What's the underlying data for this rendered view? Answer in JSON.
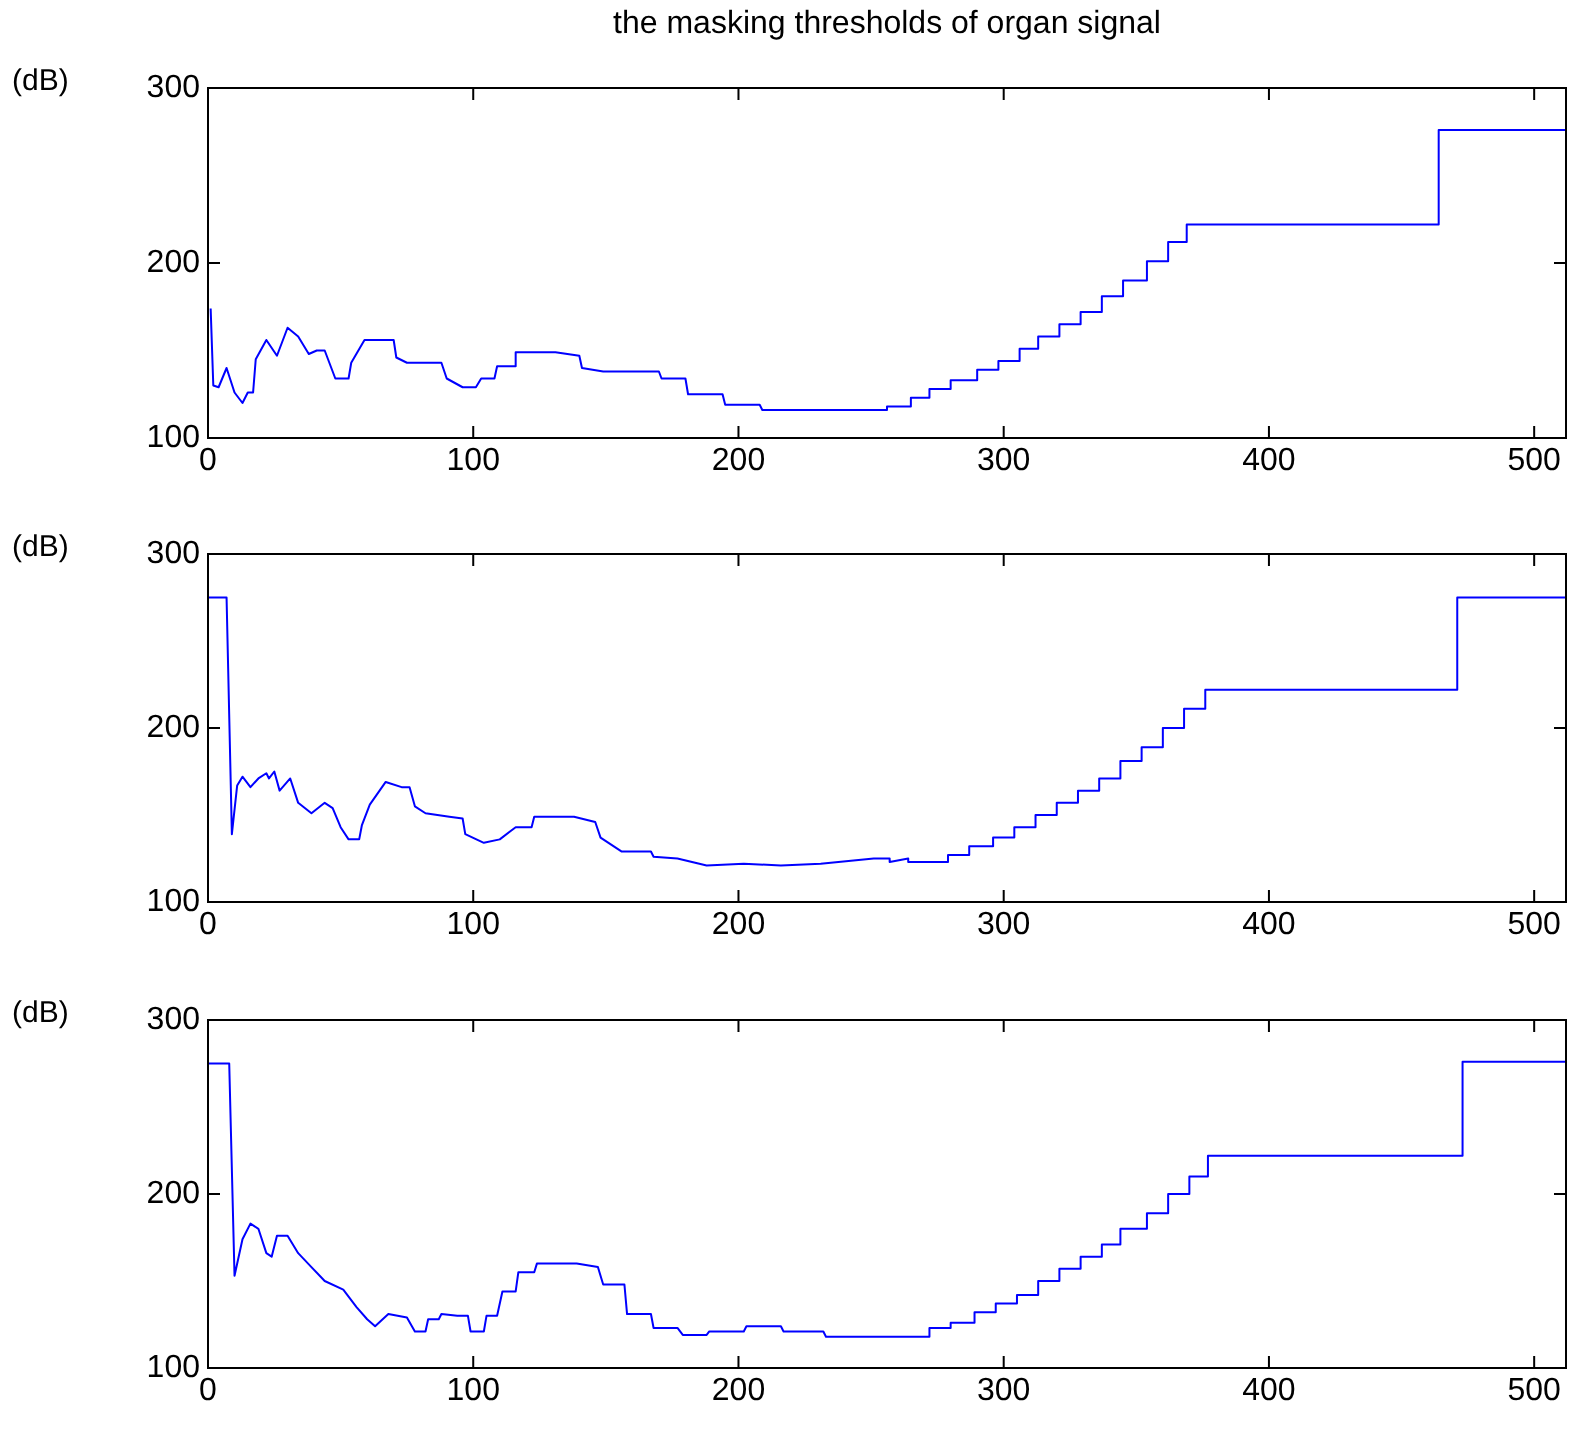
{
  "chart_data": [
    {
      "type": "line",
      "title": "the masking thresholds of organ signal",
      "ylabel": "(dB)",
      "xlim": [
        0,
        512
      ],
      "xticks": [
        0,
        100,
        200,
        300,
        400,
        500
      ],
      "ylim": [
        100,
        300
      ],
      "yticks": [
        100,
        200,
        300
      ],
      "grid": false,
      "legend": false,
      "marker": "none",
      "series": [
        {
          "color": "#0000ff",
          "x": [
            1,
            2,
            4,
            7,
            10,
            13,
            15,
            17,
            18,
            22,
            26,
            30,
            34,
            38,
            41,
            44,
            48,
            53,
            54,
            59,
            70,
            71,
            75,
            88,
            90,
            96,
            101,
            103,
            108,
            109,
            116,
            116,
            131,
            140,
            141,
            149,
            170,
            171,
            180,
            181,
            194,
            195,
            208,
            209,
            256,
            256,
            265,
            265,
            272,
            272,
            280,
            280,
            290,
            290,
            298,
            298,
            306,
            306,
            313,
            313,
            321,
            321,
            329,
            329,
            337,
            337,
            345,
            345,
            354,
            354,
            362,
            362,
            369,
            369,
            464,
            464,
            512
          ],
          "values": [
            174,
            130,
            129,
            140,
            126,
            120,
            126,
            126,
            145,
            156,
            147,
            163,
            158,
            148,
            150,
            150,
            134,
            134,
            143,
            156,
            156,
            146,
            143,
            143,
            134,
            129,
            129,
            134,
            134,
            141,
            141,
            149,
            149,
            147,
            140,
            138,
            138,
            134,
            134,
            125,
            125,
            119,
            119,
            116,
            116,
            118,
            118,
            123,
            123,
            128,
            128,
            133,
            133,
            139,
            139,
            144,
            144,
            151,
            151,
            158,
            158,
            165,
            165,
            172,
            172,
            181,
            181,
            190,
            190,
            201,
            201,
            212,
            212,
            222,
            222,
            276,
            276
          ]
        }
      ]
    },
    {
      "type": "line",
      "ylabel": "(dB)",
      "xlim": [
        0,
        512
      ],
      "xticks": [
        0,
        100,
        200,
        300,
        400,
        500
      ],
      "ylim": [
        100,
        300
      ],
      "yticks": [
        100,
        200,
        300
      ],
      "grid": false,
      "legend": false,
      "marker": "none",
      "series": [
        {
          "color": "#0000ff",
          "x": [
            0,
            7,
            9,
            11,
            13,
            16,
            19,
            22,
            23,
            25,
            27,
            31,
            34,
            39,
            44,
            47,
            50,
            53,
            57,
            58,
            61,
            67,
            73,
            76,
            78,
            82,
            91,
            96,
            97,
            104,
            110,
            116,
            122,
            123,
            138,
            146,
            148,
            156,
            167,
            168,
            177,
            188,
            202,
            216,
            231,
            251,
            257,
            257,
            264,
            264,
            279,
            279,
            287,
            287,
            296,
            296,
            304,
            304,
            312,
            312,
            320,
            320,
            328,
            328,
            336,
            336,
            344,
            344,
            352,
            352,
            360,
            360,
            368,
            368,
            376,
            376,
            471,
            471,
            512
          ],
          "values": [
            275,
            275,
            139,
            167,
            172,
            166,
            171,
            174,
            171,
            175,
            164,
            171,
            157,
            151,
            157,
            154,
            143,
            136,
            136,
            144,
            156,
            169,
            166,
            166,
            155,
            151,
            149,
            148,
            139,
            134,
            136,
            143,
            143,
            149,
            149,
            146,
            137,
            129,
            129,
            126,
            125,
            121,
            122,
            121,
            122,
            125,
            125,
            123,
            125,
            123,
            123,
            127,
            127,
            132,
            132,
            137,
            137,
            143,
            143,
            150,
            150,
            157,
            157,
            164,
            164,
            171,
            171,
            181,
            181,
            189,
            189,
            200,
            200,
            211,
            211,
            222,
            222,
            275,
            275
          ]
        }
      ]
    },
    {
      "type": "line",
      "ylabel": "(dB)",
      "xlim": [
        0,
        512
      ],
      "xticks": [
        0,
        100,
        200,
        300,
        400,
        500
      ],
      "ylim": [
        100,
        300
      ],
      "yticks": [
        100,
        200,
        300
      ],
      "grid": false,
      "legend": false,
      "marker": "none",
      "series": [
        {
          "color": "#0000ff",
          "x": [
            0,
            8,
            10,
            13,
            16,
            19,
            22,
            24,
            26,
            30,
            34,
            39,
            44,
            51,
            56,
            60,
            63,
            68,
            75,
            78,
            82,
            83,
            87,
            88,
            94,
            98,
            99,
            104,
            105,
            109,
            111,
            116,
            117,
            123,
            124,
            139,
            147,
            149,
            157,
            158,
            167,
            168,
            177,
            179,
            188,
            189,
            202,
            203,
            216,
            217,
            232,
            233,
            272,
            272,
            280,
            280,
            289,
            289,
            297,
            297,
            305,
            305,
            313,
            313,
            321,
            321,
            329,
            329,
            337,
            337,
            344,
            344,
            354,
            354,
            362,
            362,
            370,
            370,
            377,
            377,
            473,
            473,
            512
          ],
          "values": [
            275,
            275,
            153,
            174,
            183,
            180,
            166,
            164,
            176,
            176,
            166,
            158,
            150,
            145,
            135,
            128,
            124,
            131,
            129,
            121,
            121,
            128,
            128,
            131,
            130,
            130,
            121,
            121,
            130,
            130,
            144,
            144,
            155,
            155,
            160,
            160,
            158,
            148,
            148,
            131,
            131,
            123,
            123,
            119,
            119,
            121,
            121,
            124,
            124,
            121,
            121,
            118,
            118,
            123,
            123,
            126,
            126,
            132,
            132,
            137,
            137,
            142,
            142,
            150,
            150,
            157,
            157,
            164,
            164,
            171,
            171,
            180,
            180,
            189,
            189,
            200,
            200,
            210,
            210,
            222,
            222,
            276,
            276
          ]
        }
      ]
    }
  ]
}
